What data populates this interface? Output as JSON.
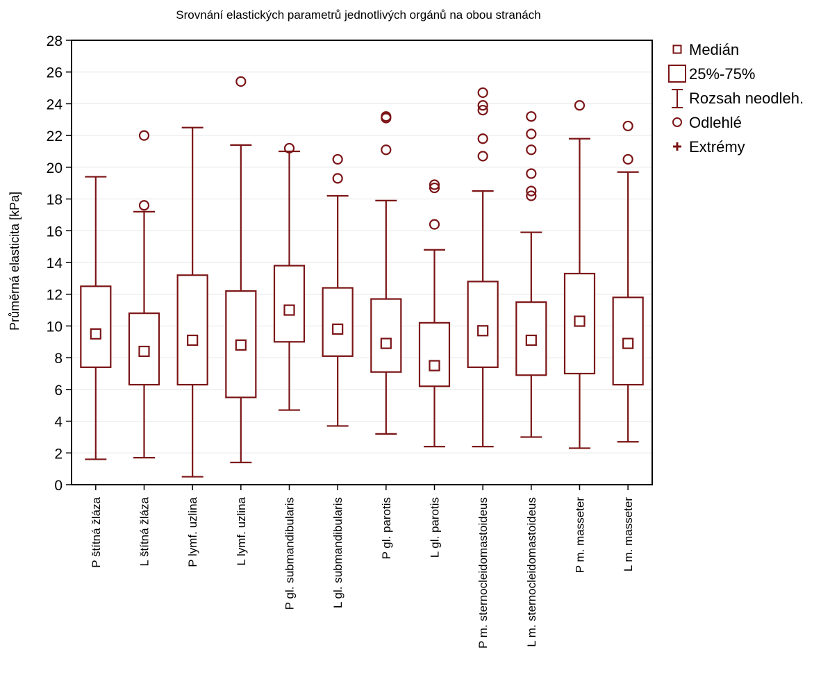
{
  "chart_data": {
    "type": "box",
    "title": "Srovnání elastických parametrů jednotlivých orgánů na obou stranách",
    "xlabel": "",
    "ylabel": "Průměrná elasticita [kPa]",
    "ylim": [
      0,
      28
    ],
    "yticks": [
      0,
      2,
      4,
      6,
      8,
      10,
      12,
      14,
      16,
      18,
      20,
      22,
      24,
      26,
      28
    ],
    "grid": true,
    "legend_position": "right",
    "color": "#7b1416",
    "legend": [
      {
        "symbol": "median",
        "label": "Medián"
      },
      {
        "symbol": "box",
        "label": "25%-75%"
      },
      {
        "symbol": "whisker",
        "label": "Rozsah neodleh."
      },
      {
        "symbol": "outlier",
        "label": "Odlehlé"
      },
      {
        "symbol": "extreme",
        "label": "Extrémy"
      }
    ],
    "categories": [
      "P štítná žláza",
      "L štítná žláza",
      "P lymf. uzlina",
      "L  lymf. uzlina",
      "P gl. submandibularis",
      "L gl. submandibularis",
      "P gl. parotis",
      "L gl. parotis",
      "P m. sternocleidomastoideus",
      "L m. sternocleidomastoideus",
      "P m. masseter",
      "L m. masseter"
    ],
    "boxes": [
      {
        "median": 9.5,
        "q1": 7.4,
        "q3": 12.5,
        "min": 1.6,
        "max": 19.4,
        "outliers": []
      },
      {
        "median": 8.4,
        "q1": 6.3,
        "q3": 10.8,
        "min": 1.7,
        "max": 17.2,
        "outliers": [
          22.0,
          17.6
        ]
      },
      {
        "median": 9.1,
        "q1": 6.3,
        "q3": 13.2,
        "min": 0.5,
        "max": 22.5,
        "outliers": []
      },
      {
        "median": 8.8,
        "q1": 5.5,
        "q3": 12.2,
        "min": 1.4,
        "max": 21.4,
        "outliers": [
          25.4
        ]
      },
      {
        "median": 11.0,
        "q1": 9.0,
        "q3": 13.8,
        "min": 4.7,
        "max": 21.0,
        "outliers": [
          21.2
        ]
      },
      {
        "median": 9.8,
        "q1": 8.1,
        "q3": 12.4,
        "min": 3.7,
        "max": 18.2,
        "outliers": [
          20.5,
          19.3
        ]
      },
      {
        "median": 8.9,
        "q1": 7.1,
        "q3": 11.7,
        "min": 3.2,
        "max": 17.9,
        "outliers": [
          23.2,
          23.1,
          21.1
        ]
      },
      {
        "median": 7.5,
        "q1": 6.2,
        "q3": 10.2,
        "min": 2.4,
        "max": 14.8,
        "outliers": [
          18.9,
          18.7,
          16.4
        ]
      },
      {
        "median": 9.7,
        "q1": 7.4,
        "q3": 12.8,
        "min": 2.4,
        "max": 18.5,
        "outliers": [
          24.7,
          23.9,
          23.6,
          21.8,
          20.7
        ]
      },
      {
        "median": 9.1,
        "q1": 6.9,
        "q3": 11.5,
        "min": 3.0,
        "max": 15.9,
        "outliers": [
          23.2,
          22.1,
          21.1,
          19.6,
          18.5,
          18.2
        ]
      },
      {
        "median": 10.3,
        "q1": 7.0,
        "q3": 13.3,
        "min": 2.3,
        "max": 21.8,
        "outliers": [
          23.9
        ]
      },
      {
        "median": 8.9,
        "q1": 6.3,
        "q3": 11.8,
        "min": 2.7,
        "max": 19.7,
        "outliers": [
          22.6,
          20.5
        ]
      }
    ]
  }
}
